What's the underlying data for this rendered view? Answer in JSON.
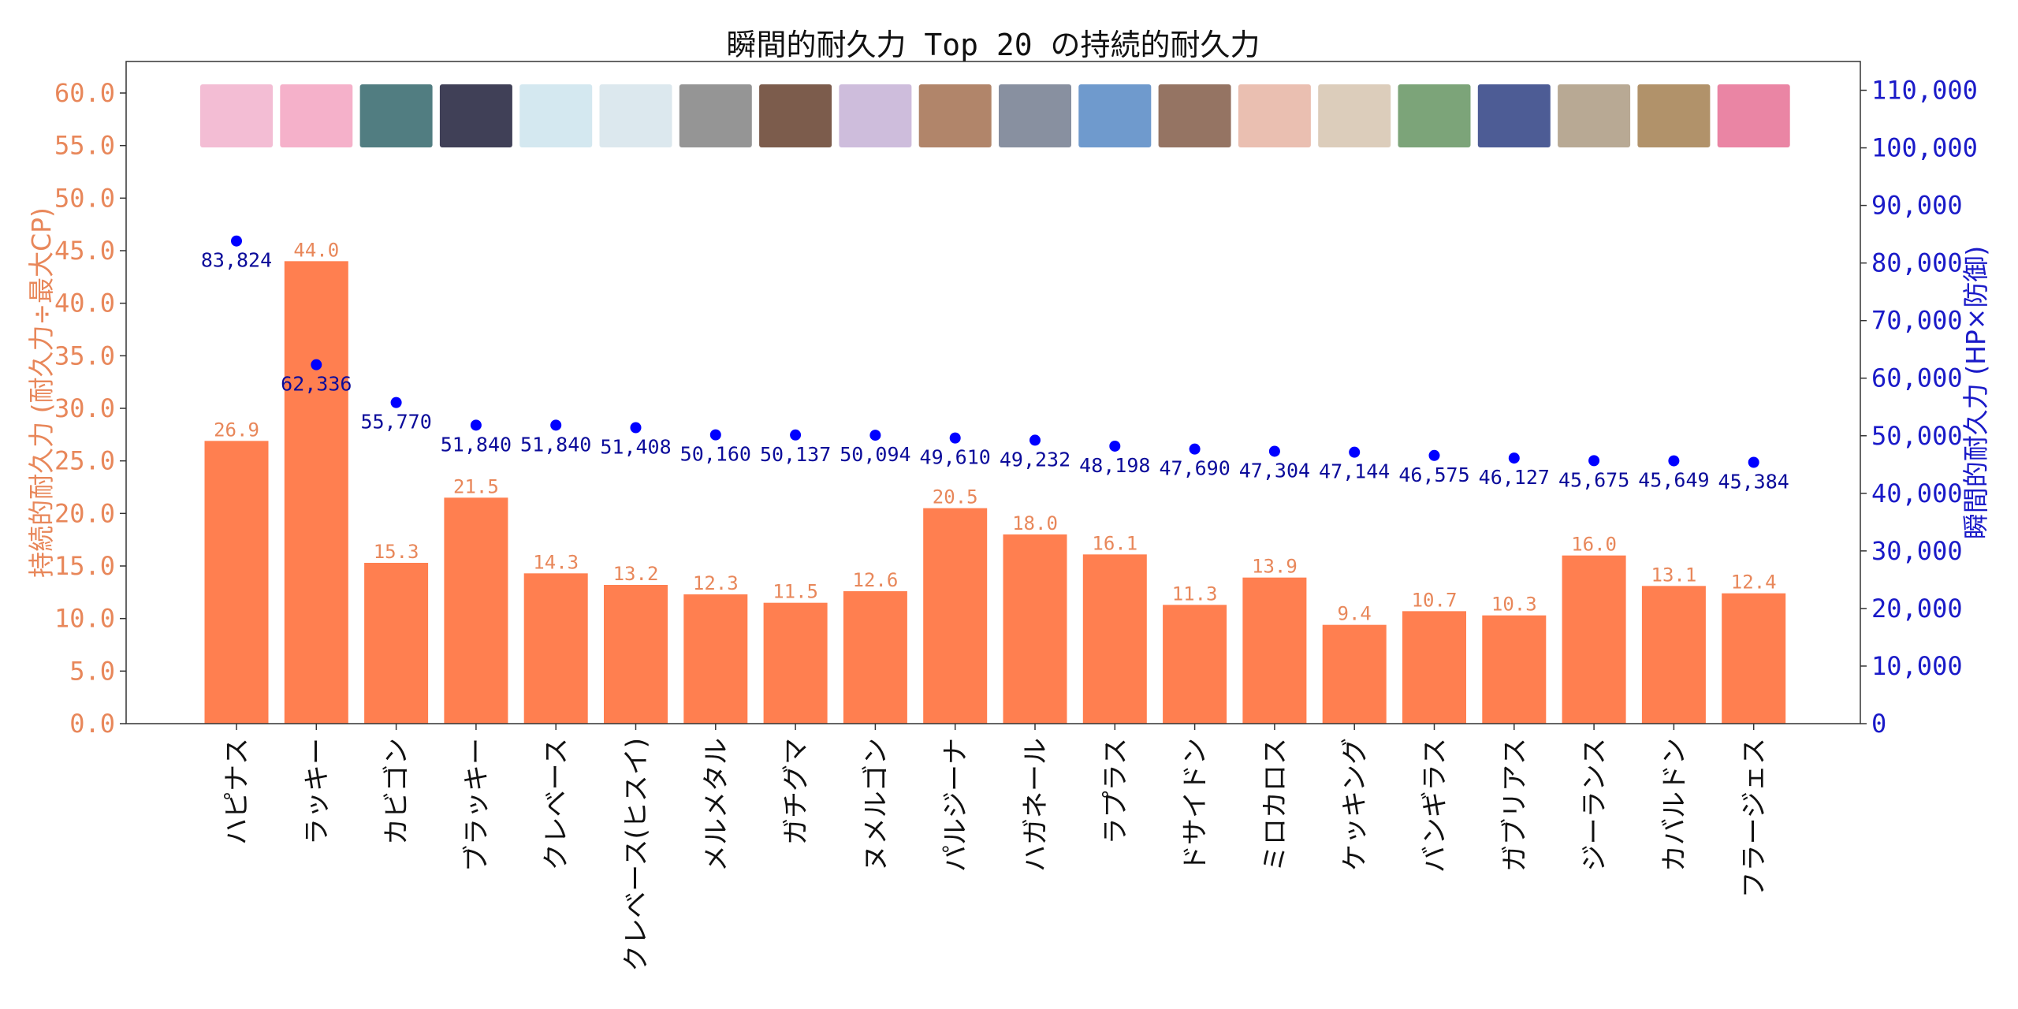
{
  "chart_data": {
    "type": "bar",
    "title": "瞬間的耐久力 Top 20 の持続的耐久力",
    "ylabel_left": "持続的耐久力 (耐久力÷最大CP)",
    "ylabel_right": "瞬間的耐久力 (HP×防御)",
    "ylim_left": [
      0,
      63
    ],
    "ylim_right": [
      0,
      115000
    ],
    "yticks_left": [
      0,
      5,
      10,
      15,
      20,
      25,
      30,
      35,
      40,
      45,
      50,
      55,
      60
    ],
    "yticks_right": [
      0,
      10000,
      20000,
      30000,
      40000,
      50000,
      60000,
      70000,
      80000,
      90000,
      100000,
      110000
    ],
    "colors": {
      "bar": "#ff7f50",
      "point": "#0000ff",
      "left_axis": "#e8875a",
      "right_axis": "#1a1ac8"
    },
    "categories": [
      "ハピナス",
      "ラッキー",
      "カビゴン",
      "ブラッキー",
      "クレベース",
      "クレベース(ヒスイ)",
      "メルメタル",
      "ガチグマ",
      "ヌメルゴン",
      "パルジーナ",
      "ハガネール",
      "ラプラス",
      "ドサイドン",
      "ミロカロス",
      "ケッキング",
      "バンギラス",
      "ガブリアス",
      "ジーランス",
      "カバルドン",
      "フラージェス"
    ],
    "series": [
      {
        "type": "bar",
        "axis": "left",
        "values": [
          26.9,
          44.0,
          15.3,
          21.5,
          14.3,
          13.2,
          12.3,
          11.5,
          12.6,
          20.5,
          18.0,
          16.1,
          11.3,
          13.9,
          9.4,
          10.7,
          10.3,
          16.0,
          13.1,
          12.4
        ],
        "labels": [
          "26.9",
          "44.0",
          "15.3",
          "21.5",
          "14.3",
          "13.2",
          "12.3",
          "11.5",
          "12.6",
          "20.5",
          "18.0",
          "16.1",
          "11.3",
          "13.9",
          "9.4",
          "10.7",
          "10.3",
          "16.0",
          "13.1",
          "12.4"
        ]
      },
      {
        "type": "scatter",
        "axis": "right",
        "values": [
          83824,
          62336,
          55770,
          51840,
          51840,
          51408,
          50160,
          50137,
          50094,
          49610,
          49232,
          48198,
          47690,
          47304,
          47144,
          46575,
          46127,
          45675,
          45649,
          45384
        ],
        "labels": [
          "83,824",
          "62,336",
          "55,770",
          "51,840",
          "51,840",
          "51,408",
          "50,160",
          "50,137",
          "50,094",
          "49,610",
          "49,232",
          "48,198",
          "47,690",
          "47,304",
          "47,144",
          "46,575",
          "46,127",
          "45,675",
          "45,649",
          "45,384"
        ]
      }
    ],
    "thumbnail_colors": [
      "#f2b6cf",
      "#f4a9c4",
      "#3e6f73",
      "#2b2b45",
      "#cfe6ee",
      "#d8e6ec",
      "#8a8a8a",
      "#6e4a38",
      "#c9b6d8",
      "#a8785a",
      "#7b8496",
      "#5f8fc8",
      "#8a6552",
      "#e8b8a8",
      "#d8c8b4",
      "#6e9a6a",
      "#3a4a8a",
      "#b0a088",
      "#a8865a",
      "#e8789a"
    ]
  }
}
